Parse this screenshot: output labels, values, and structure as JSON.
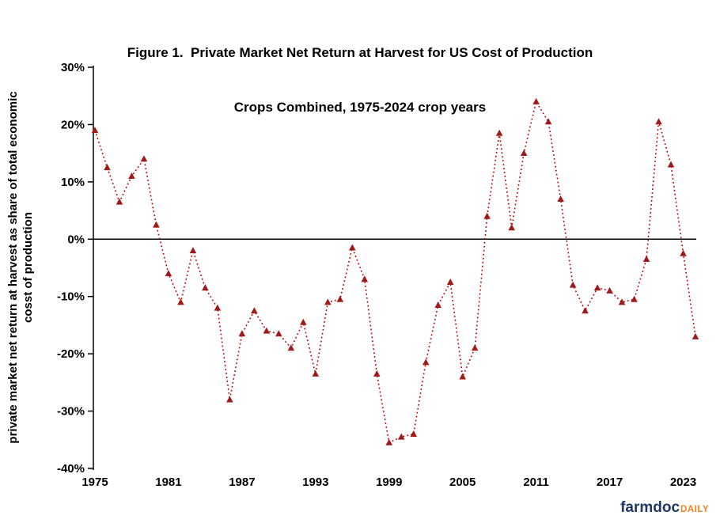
{
  "title": {
    "line1": "Figure 1.  Private Market Net Return at Harvest for US Cost of Production",
    "line2": "Crops Combined, 1975-2024 crop years"
  },
  "chart_data": {
    "type": "line",
    "title": "Figure 1.  Private Market Net Return at Harvest for US Cost of Production Crops Combined, 1975-2024 crop years",
    "ylabel_line1": "private market net return at harvest as share of total economic",
    "ylabel_line2": "cosst of production",
    "xlabel": "",
    "x": [
      1975,
      1976,
      1977,
      1978,
      1979,
      1980,
      1981,
      1982,
      1983,
      1984,
      1985,
      1986,
      1987,
      1988,
      1989,
      1990,
      1991,
      1992,
      1993,
      1994,
      1995,
      1996,
      1997,
      1998,
      1999,
      2000,
      2001,
      2002,
      2003,
      2004,
      2005,
      2006,
      2007,
      2008,
      2009,
      2010,
      2011,
      2012,
      2013,
      2014,
      2015,
      2016,
      2017,
      2018,
      2019,
      2020,
      2021,
      2022,
      2023,
      2024
    ],
    "values": [
      19,
      12.5,
      6.5,
      11,
      14,
      2.5,
      -6,
      -11,
      -2,
      -8.5,
      -12,
      -28,
      -16.5,
      -12.5,
      -16,
      -16.5,
      -19,
      -14.5,
      -23.5,
      -11,
      -10.5,
      -1.5,
      -7,
      -23.5,
      -35.5,
      -34.5,
      -34,
      -21.5,
      -11.5,
      -7.5,
      -24,
      -19,
      4,
      18.5,
      2,
      15,
      24,
      20.5,
      7,
      -8,
      -12.5,
      -8.5,
      -9,
      -11,
      -10.5,
      -3.5,
      20.5,
      13,
      -2.5,
      -17
    ],
    "ylim": [
      -40,
      30
    ],
    "xlim": [
      1975,
      2024
    ],
    "y_tick_values": [
      30,
      20,
      10,
      0,
      -10,
      -20,
      -30,
      -40
    ],
    "y_tick_labels": [
      "30%",
      "20%",
      "10%",
      "0%",
      "-10%",
      "-20%",
      "-30%",
      "-40%"
    ],
    "x_ticks": [
      1975,
      1981,
      1987,
      1993,
      1999,
      2005,
      2011,
      2017,
      2023
    ],
    "grid": "off",
    "legend": "none",
    "line_style": "dotted",
    "marker": "triangle",
    "line_color": "#C00000",
    "marker_color": "#9E1B1B",
    "axis_color": "#000000"
  },
  "branding": {
    "farmdoc": "farmdoc",
    "daily": "DAILY",
    "farmdoc_color": "#1F3864",
    "daily_color": "#F58220"
  }
}
